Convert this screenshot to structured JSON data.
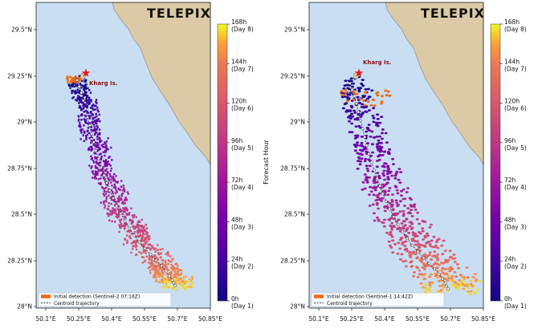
{
  "brand": "TELEPIX",
  "place_label": "Kharg Is.",
  "y_ticks": [
    "29.5°N",
    "29.25°N",
    "29°N",
    "28.75°N",
    "28.5°N",
    "28.25°N",
    "28°N"
  ],
  "x_ticks": [
    "50.1°E",
    "50.25°E",
    "50.4°E",
    "50.55°E",
    "50.7°E",
    "50.85°E"
  ],
  "colorbar": {
    "title": "Forecast Hour",
    "ticks": [
      {
        "hours": 168,
        "line1": "168h",
        "line2": "(Day 8)"
      },
      {
        "hours": 144,
        "line1": "144h",
        "line2": "(Day 7)"
      },
      {
        "hours": 120,
        "line1": "120h",
        "line2": "(Day 6)"
      },
      {
        "hours": 96,
        "line1": "96h",
        "line2": "(Day 5)"
      },
      {
        "hours": 72,
        "line1": "72h",
        "line2": "(Day 4)"
      },
      {
        "hours": 48,
        "line1": "48h",
        "line2": "(Day 3)"
      },
      {
        "hours": 24,
        "line1": "24h",
        "line2": "(Day 2)"
      },
      {
        "hours": 0,
        "line1": "0h",
        "line2": "(Day 1)"
      }
    ]
  },
  "panels": [
    {
      "legend_detection": "Initial detection (Sentinel-2 07:16Z)",
      "legend_centroid": "Centroid trajectory"
    },
    {
      "legend_detection": "Initial detection (Sentinel-1 14:42Z)",
      "legend_centroid": "Centroid trajectory"
    }
  ],
  "colors": {
    "sea": "#c9def3",
    "land": "#dccaa6",
    "coast": "#7d7d7d",
    "initial_detection": "#f06a12",
    "star": "#e8151b",
    "place_label": "#8b0d10"
  }
}
